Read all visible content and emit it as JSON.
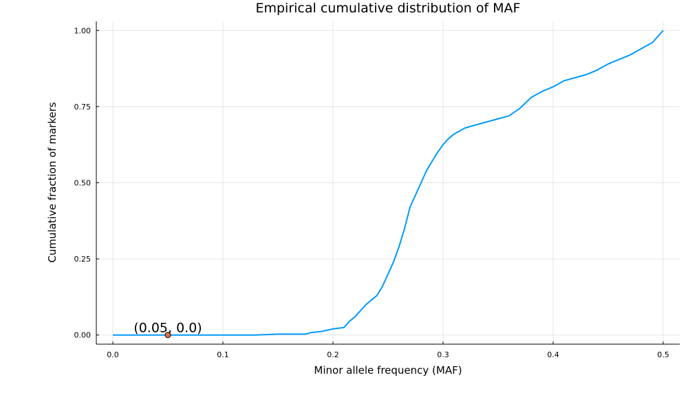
{
  "chart_data": {
    "type": "line",
    "title": "Empirical cumulative distribution of MAF",
    "xlabel": "Minor allele frequency (MAF)",
    "ylabel": "Cumulative fraction of markers",
    "xlim": [
      -0.015,
      0.515
    ],
    "ylim": [
      -0.03,
      1.03
    ],
    "xticks": [
      0.0,
      0.1,
      0.2,
      0.3,
      0.4,
      0.5
    ],
    "xtick_labels": [
      "0.0",
      "0.1",
      "0.2",
      "0.3",
      "0.4",
      "0.5"
    ],
    "yticks": [
      0.0,
      0.25,
      0.5,
      0.75,
      1.0
    ],
    "ytick_labels": [
      "0.00",
      "0.25",
      "0.50",
      "0.75",
      "1.00"
    ],
    "grid": true,
    "legend": "none",
    "series": [
      {
        "color": "#009af9",
        "x": [
          0.0,
          0.13,
          0.15,
          0.175,
          0.18,
          0.19,
          0.2,
          0.21,
          0.215,
          0.22,
          0.225,
          0.23,
          0.235,
          0.24,
          0.245,
          0.25,
          0.255,
          0.26,
          0.265,
          0.27,
          0.275,
          0.28,
          0.285,
          0.29,
          0.295,
          0.3,
          0.305,
          0.31,
          0.32,
          0.33,
          0.34,
          0.35,
          0.36,
          0.37,
          0.38,
          0.39,
          0.4,
          0.41,
          0.42,
          0.43,
          0.44,
          0.45,
          0.46,
          0.47,
          0.48,
          0.49,
          0.5
        ],
        "y": [
          0.0,
          0.0,
          0.003,
          0.003,
          0.008,
          0.012,
          0.02,
          0.025,
          0.045,
          0.06,
          0.08,
          0.1,
          0.115,
          0.13,
          0.16,
          0.2,
          0.24,
          0.29,
          0.35,
          0.42,
          0.46,
          0.5,
          0.54,
          0.57,
          0.6,
          0.625,
          0.645,
          0.66,
          0.68,
          0.69,
          0.7,
          0.71,
          0.72,
          0.745,
          0.78,
          0.8,
          0.815,
          0.835,
          0.845,
          0.855,
          0.87,
          0.89,
          0.905,
          0.92,
          0.94,
          0.96,
          1.0
        ]
      },
      {
        "type": "scatter",
        "color": "#e26f46",
        "x": [
          0.05
        ],
        "y": [
          0.0
        ]
      }
    ],
    "annotations": [
      {
        "text": "(0.05, 0.0)",
        "x": 0.05,
        "y": 0.0
      }
    ]
  }
}
